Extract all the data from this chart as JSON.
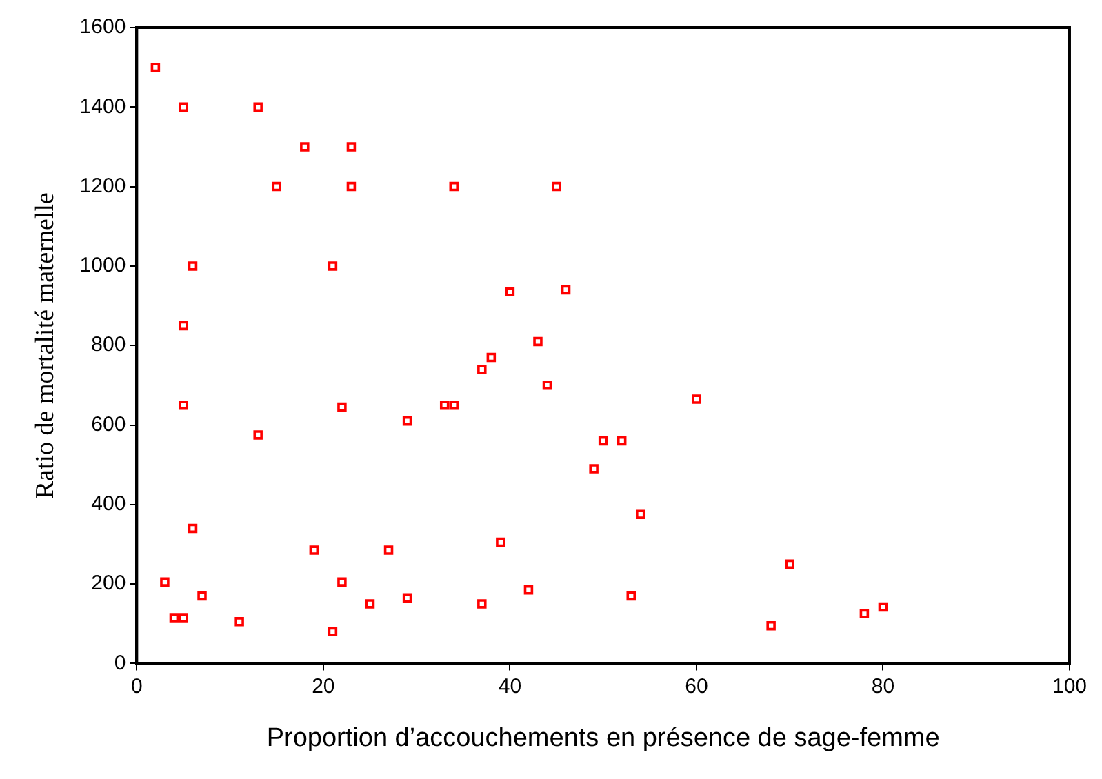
{
  "chart_data": {
    "type": "scatter",
    "xlabel": "Proportion d’accouchements en présence de sage-femme",
    "ylabel": "Ratio de mortalité maternelle",
    "xlim": [
      0,
      100
    ],
    "xticks": [
      0,
      20,
      40,
      60,
      80,
      100
    ],
    "ylim": [
      0,
      1600
    ],
    "yticks": [
      0,
      200,
      400,
      600,
      800,
      1000,
      1200,
      1400,
      1600
    ],
    "grid": false,
    "legend": false,
    "marker": "square",
    "series": [
      {
        "color": "#ff0000",
        "x": [
          2,
          5,
          13,
          18,
          23,
          15,
          23,
          34,
          45,
          6,
          21,
          40,
          46,
          5,
          43,
          38,
          37,
          44,
          5,
          22,
          33,
          34,
          29,
          13,
          50,
          49,
          6,
          19,
          27,
          39,
          3,
          22,
          7,
          42,
          4,
          5,
          11,
          25,
          29,
          37,
          21,
          60,
          52,
          54,
          70,
          53,
          68,
          78,
          80
        ],
        "values": [
          1500,
          1400,
          1400,
          1300,
          1300,
          1200,
          1200,
          1200,
          1200,
          1000,
          1000,
          935,
          940,
          850,
          810,
          770,
          740,
          700,
          650,
          645,
          650,
          650,
          610,
          575,
          560,
          490,
          340,
          285,
          285,
          305,
          205,
          205,
          170,
          185,
          115,
          115,
          105,
          150,
          165,
          150,
          80,
          665,
          560,
          375,
          250,
          170,
          95,
          125,
          142
        ]
      }
    ]
  }
}
